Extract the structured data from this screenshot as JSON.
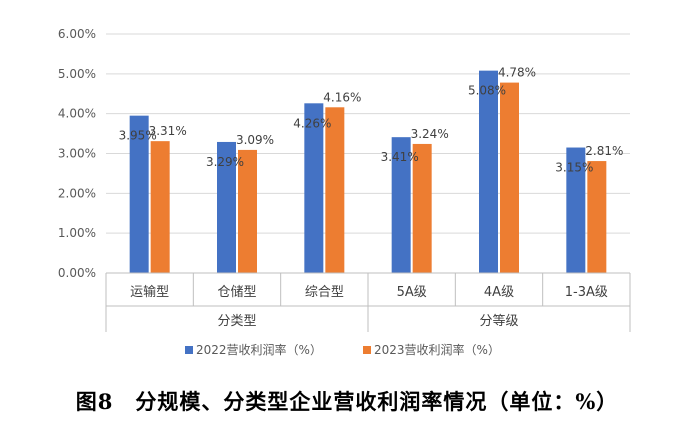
{
  "caption": "图8　分规模、分类型企业营收利润率情况（单位：%）",
  "chart_data": {
    "type": "bar",
    "categories": [
      "运输型",
      "仓储型",
      "综合型",
      "5A级",
      "4A级",
      "1-3A级"
    ],
    "groups": [
      {
        "label": "分类型",
        "categories": [
          "运输型",
          "仓储型",
          "综合型"
        ]
      },
      {
        "label": "分等级",
        "categories": [
          "5A级",
          "4A级",
          "1-3A级"
        ]
      }
    ],
    "series": [
      {
        "name": "2022营收利润率（%）",
        "color": "#4472C4",
        "values": [
          3.95,
          3.29,
          4.26,
          3.41,
          5.08,
          3.15
        ],
        "labels": [
          "3.95%",
          "3.29%",
          "4.26%",
          "3.41%",
          "5.08%",
          "3.15%"
        ]
      },
      {
        "name": "2023营收利润率（%）",
        "color": "#ED7D31",
        "values": [
          3.31,
          3.09,
          4.16,
          3.24,
          4.78,
          2.81
        ],
        "labels": [
          "3.31%",
          "3.09%",
          "4.16%",
          "3.24%",
          "4.78%",
          "2.81%"
        ]
      }
    ],
    "yticks": [
      "0.00%",
      "1.00%",
      "2.00%",
      "3.00%",
      "4.00%",
      "5.00%",
      "6.00%"
    ],
    "ylim": [
      0,
      6
    ],
    "grid": true,
    "legend": "bottom"
  }
}
